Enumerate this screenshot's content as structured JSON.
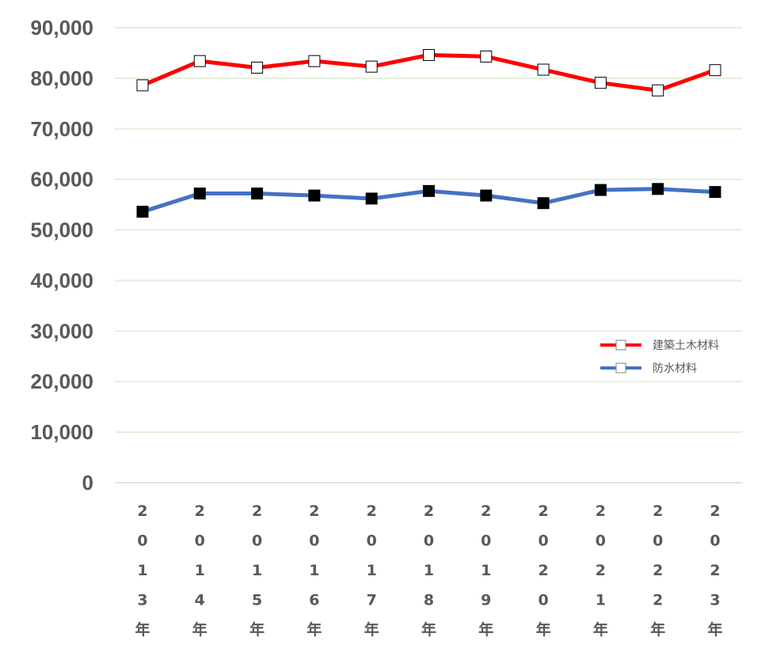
{
  "chart_data": {
    "type": "line",
    "categories": [
      "2013年",
      "2014年",
      "2015年",
      "2016年",
      "2017年",
      "2018年",
      "2019年",
      "2020年",
      "2021年",
      "2022年",
      "2023年"
    ],
    "series": [
      {
        "name": "建築土木材料",
        "values": [
          78600,
          83400,
          82100,
          83400,
          82300,
          84600,
          84300,
          81700,
          79100,
          77600,
          81600
        ],
        "color": "#ff0000",
        "marker": "open-square"
      },
      {
        "name": "防水材料",
        "values": [
          53600,
          57200,
          57200,
          56800,
          56200,
          57700,
          56800,
          55300,
          57900,
          58100,
          57500
        ],
        "color": "#4472c4",
        "marker": "filled-square"
      }
    ],
    "y_ticks": [
      "0",
      "10,000",
      "20,000",
      "30,000",
      "40,000",
      "50,000",
      "60,000",
      "70,000",
      "80,000",
      "90,000"
    ],
    "ylim": [
      0,
      90000
    ],
    "grid": true,
    "grid_color": "#e2efda",
    "legend_position": "right-middle",
    "title": "",
    "xlabel": "",
    "ylabel": ""
  }
}
